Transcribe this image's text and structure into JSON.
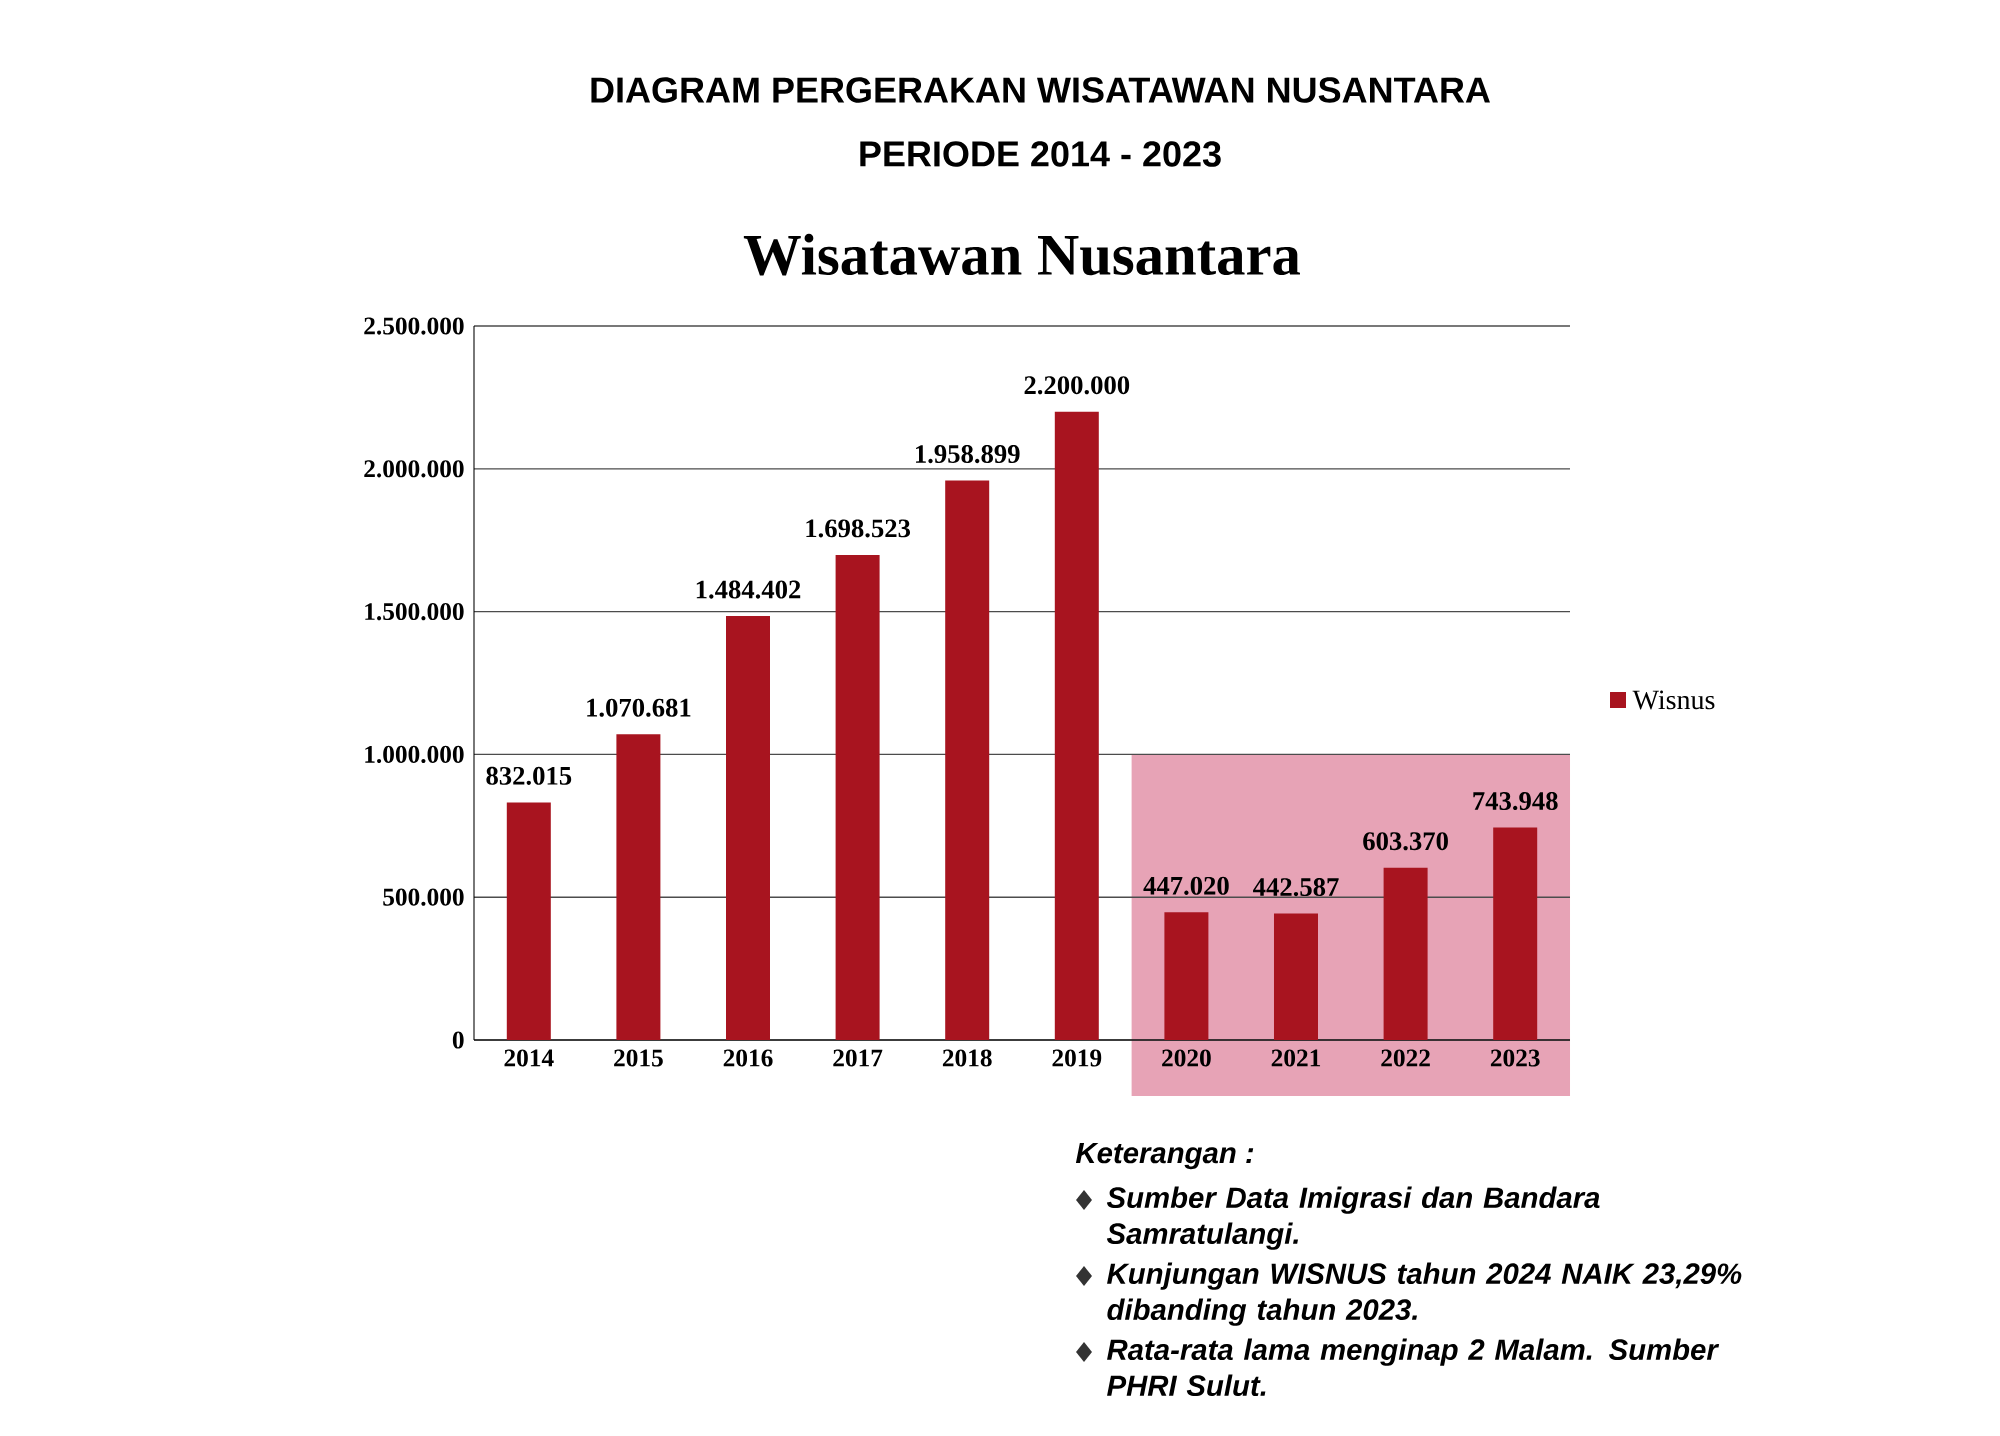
{
  "chart_data": {
    "type": "bar",
    "title": "DIAGRAM PERGERAKAN WISATAWAN NUSANTARA",
    "subtitle": "PERIODE 2014 - 2023",
    "annotations": [
      "Wisatawan Nusantara",
      "Keterangan :",
      "Sumber Data Imigrasi dan Bandara Samratulangi.",
      "Kunjungan WISNUS tahun 2024 NAIK 23,29% dibanding tahun 2023.",
      "Rata-rata lama menginap 2 Malam. Sumber PHRI Sulut."
    ],
    "categories": [
      "2014",
      "2015",
      "2016",
      "2017",
      "2018",
      "2019",
      "2020",
      "2021",
      "2022",
      "2023"
    ],
    "series": [
      {
        "name": "Wisnus",
        "color": "#a8141f",
        "values": [
          832015,
          1070681,
          1484402,
          1698523,
          1958899,
          2200000,
          447020,
          442587,
          603370,
          743948
        ],
        "value_labels": [
          "832.015",
          "1.070.681",
          "1.484.402",
          "1.698.523",
          "1.958.899",
          "2.200.000",
          "447.020",
          "442.587",
          "603.370",
          "743.948"
        ]
      }
    ],
    "ylim": [
      0,
      2500000
    ],
    "yticks": [
      {
        "value": 0,
        "label": "0"
      },
      {
        "value": 500000,
        "label": "500.000"
      },
      {
        "value": 1000000,
        "label": "1.000.000"
      },
      {
        "value": 1500000,
        "label": "1.500.000"
      },
      {
        "value": 2000000,
        "label": "2.000.000"
      },
      {
        "value": 2500000,
        "label": "2.500.000"
      }
    ],
    "bands": [
      {
        "axis": "x",
        "from": "2020",
        "to": "2023",
        "color": "#e7a3b6"
      }
    ],
    "grid": "y",
    "legend": "right"
  }
}
